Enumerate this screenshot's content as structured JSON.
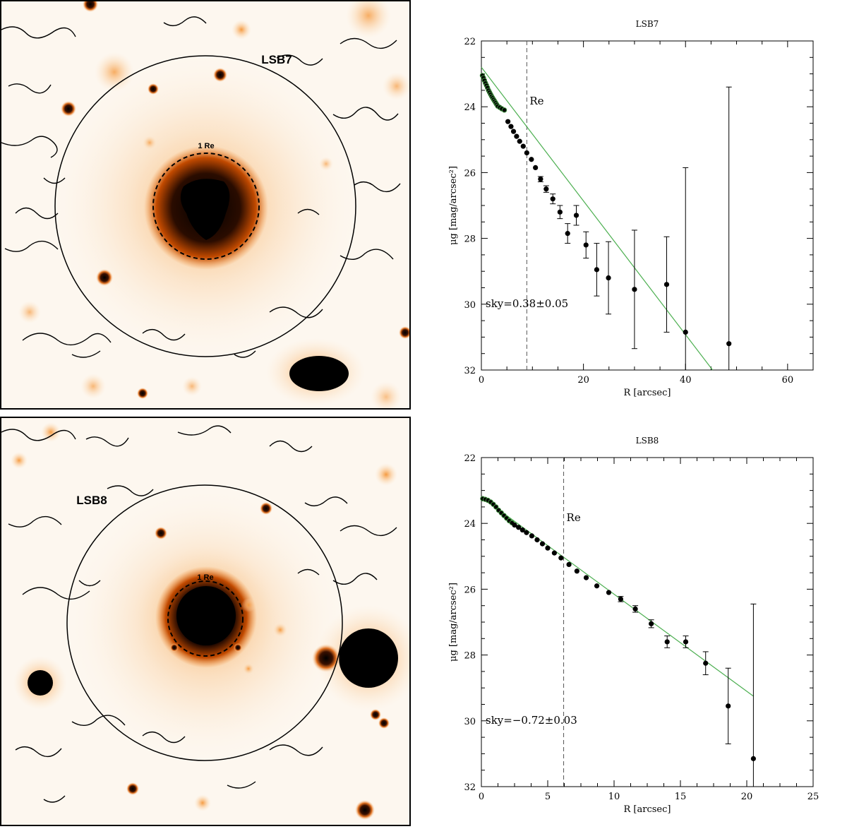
{
  "panels": [
    {
      "galaxy_label": "LSB7",
      "re_label": "1 Re"
    },
    {
      "galaxy_label": "LSB8",
      "re_label": "1 Re"
    }
  ],
  "chart_data": [
    {
      "type": "scatter",
      "title": "LSB7",
      "xlabel": "R [arcsec]",
      "ylabel": "μg [mag/arcsec²]",
      "xlim": [
        0,
        65
      ],
      "ylim": [
        32,
        22
      ],
      "y_inverted": true,
      "xticks": [
        0,
        20,
        40,
        60
      ],
      "yticks": [
        22,
        24,
        26,
        28,
        30,
        32
      ],
      "re_marker": {
        "x": 8.9,
        "label": "Re"
      },
      "sky_annotation": "sky=0.38±0.05",
      "fit_line": {
        "x": [
          0,
          45.3
        ],
        "y": [
          22.8,
          32.0
        ],
        "color": "#4caf50"
      },
      "inner_profile": {
        "x": [
          0.2,
          0.4,
          0.6,
          0.8,
          1.0,
          1.2,
          1.4,
          1.6,
          1.8,
          2.0,
          2.2,
          2.4,
          2.6,
          2.8,
          3.0,
          3.2,
          3.6,
          4.0,
          4.5
        ],
        "y": [
          23.05,
          23.12,
          23.2,
          23.28,
          23.35,
          23.42,
          23.5,
          23.56,
          23.62,
          23.68,
          23.73,
          23.78,
          23.83,
          23.88,
          23.93,
          23.98,
          24.02,
          24.06,
          24.1
        ]
      },
      "points": [
        {
          "x": 5.2,
          "y": 24.45,
          "err": 0.03
        },
        {
          "x": 5.8,
          "y": 24.6,
          "err": 0.03
        },
        {
          "x": 6.3,
          "y": 24.75,
          "err": 0.03
        },
        {
          "x": 6.9,
          "y": 24.9,
          "err": 0.03
        },
        {
          "x": 7.5,
          "y": 25.05,
          "err": 0.04
        },
        {
          "x": 8.2,
          "y": 25.2,
          "err": 0.04
        },
        {
          "x": 8.9,
          "y": 25.4,
          "err": 0.04
        },
        {
          "x": 9.8,
          "y": 25.6,
          "err": 0.05
        },
        {
          "x": 10.6,
          "y": 25.85,
          "err": 0.06
        },
        {
          "x": 11.6,
          "y": 26.2,
          "err": 0.08
        },
        {
          "x": 12.7,
          "y": 26.5,
          "err": 0.1
        },
        {
          "x": 14.0,
          "y": 26.8,
          "err": 0.15
        },
        {
          "x": 15.4,
          "y": 27.2,
          "err": 0.2
        },
        {
          "x": 16.9,
          "y": 27.85,
          "err": 0.3
        },
        {
          "x": 18.6,
          "y": 27.3,
          "err": 0.3
        },
        {
          "x": 20.5,
          "y": 28.2,
          "err": 0.4
        },
        {
          "x": 22.6,
          "y": 28.95,
          "err": 0.8
        },
        {
          "x": 24.9,
          "y": 29.2,
          "err": 1.1
        },
        {
          "x": 30.0,
          "y": 29.55,
          "err": 1.8
        },
        {
          "x": 36.3,
          "y": 29.4,
          "err": 1.45
        },
        {
          "x": 40.0,
          "y": 30.85,
          "err": 5.0
        },
        {
          "x": 48.5,
          "y": 31.2,
          "err": 7.8
        }
      ]
    },
    {
      "type": "scatter",
      "title": "LSB8",
      "xlabel": "R [arcsec]",
      "ylabel": "μg [mag/arcsec²]",
      "xlim": [
        0,
        25
      ],
      "ylim": [
        32,
        22
      ],
      "y_inverted": true,
      "xticks": [
        0,
        5,
        10,
        15,
        20,
        25
      ],
      "yticks": [
        22,
        24,
        26,
        28,
        30,
        32
      ],
      "re_marker": {
        "x": 6.2,
        "label": "Re"
      },
      "sky_annotation": "sky=−0.72±0.03",
      "fit_line": {
        "x": [
          0,
          20.5
        ],
        "y": [
          23.2,
          29.25
        ],
        "color": "#4caf50"
      },
      "inner_profile": {
        "x": [
          0.1,
          0.3,
          0.5,
          0.7,
          0.9,
          1.1,
          1.3,
          1.5,
          1.7,
          1.9,
          2.1,
          2.3
        ],
        "y": [
          23.25,
          23.27,
          23.3,
          23.35,
          23.42,
          23.5,
          23.6,
          23.68,
          23.76,
          23.84,
          23.92,
          23.98
        ]
      },
      "points": [
        {
          "x": 2.5,
          "y": 24.05,
          "err": 0.02
        },
        {
          "x": 2.8,
          "y": 24.12,
          "err": 0.02
        },
        {
          "x": 3.1,
          "y": 24.2,
          "err": 0.02
        },
        {
          "x": 3.4,
          "y": 24.28,
          "err": 0.02
        },
        {
          "x": 3.8,
          "y": 24.38,
          "err": 0.02
        },
        {
          "x": 4.2,
          "y": 24.5,
          "err": 0.02
        },
        {
          "x": 4.6,
          "y": 24.62,
          "err": 0.03
        },
        {
          "x": 5.0,
          "y": 24.75,
          "err": 0.03
        },
        {
          "x": 5.5,
          "y": 24.9,
          "err": 0.03
        },
        {
          "x": 6.0,
          "y": 25.05,
          "err": 0.03
        },
        {
          "x": 6.6,
          "y": 25.25,
          "err": 0.03
        },
        {
          "x": 7.2,
          "y": 25.45,
          "err": 0.04
        },
        {
          "x": 7.9,
          "y": 25.65,
          "err": 0.04
        },
        {
          "x": 8.7,
          "y": 25.9,
          "err": 0.05
        },
        {
          "x": 9.6,
          "y": 26.1,
          "err": 0.06
        },
        {
          "x": 10.5,
          "y": 26.3,
          "err": 0.08
        },
        {
          "x": 11.6,
          "y": 26.6,
          "err": 0.1
        },
        {
          "x": 12.8,
          "y": 27.05,
          "err": 0.12
        },
        {
          "x": 14.0,
          "y": 27.6,
          "err": 0.18
        },
        {
          "x": 15.4,
          "y": 27.6,
          "err": 0.18
        },
        {
          "x": 16.9,
          "y": 28.25,
          "err": 0.35
        },
        {
          "x": 18.6,
          "y": 29.55,
          "err": 1.15
        },
        {
          "x": 20.5,
          "y": 31.15,
          "err": 4.7
        }
      ]
    }
  ]
}
